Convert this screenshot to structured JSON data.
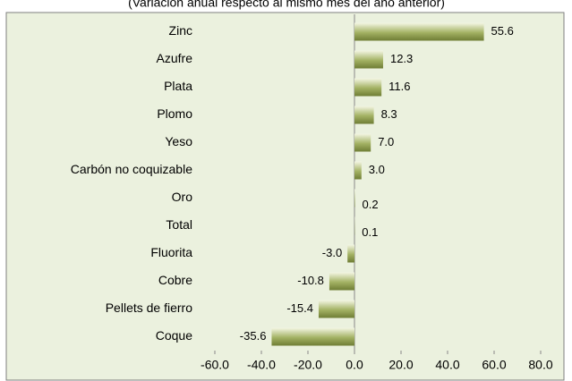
{
  "chart_data": {
    "type": "bar",
    "orientation": "horizontal",
    "subtitle": "(Variación anual respecto al mismo mes del año anterior)",
    "categories": [
      "Zinc",
      "Azufre",
      "Plata",
      "Plomo",
      "Yeso",
      "Carbón no coquizable",
      "Oro",
      "Total",
      "Fluorita",
      "Cobre",
      "Pellets de fierro",
      "Coque"
    ],
    "values": [
      55.6,
      12.3,
      11.6,
      8.3,
      7.0,
      3.0,
      0.2,
      0.1,
      -3.0,
      -10.8,
      -15.4,
      -35.6
    ],
    "value_labels": [
      "55.6",
      "12.3",
      "11.6",
      "8.3",
      "7.0",
      "3.0",
      "0.2",
      "0.1",
      "-3.0",
      "-10.8",
      "-15.4",
      "-35.6"
    ],
    "color": "#a3b263",
    "xlim": [
      -60,
      80
    ],
    "xticks": [
      {
        "value": -60,
        "label": "-60.0"
      },
      {
        "value": -40,
        "label": "-40.0"
      },
      {
        "value": -20,
        "label": "-20.0"
      },
      {
        "value": 0,
        "label": "0.0"
      },
      {
        "value": 20,
        "label": "20.0"
      },
      {
        "value": 40,
        "label": "40.0"
      },
      {
        "value": 60,
        "label": "60.0"
      },
      {
        "value": 80,
        "label": "80.0"
      }
    ],
    "grid": false
  }
}
